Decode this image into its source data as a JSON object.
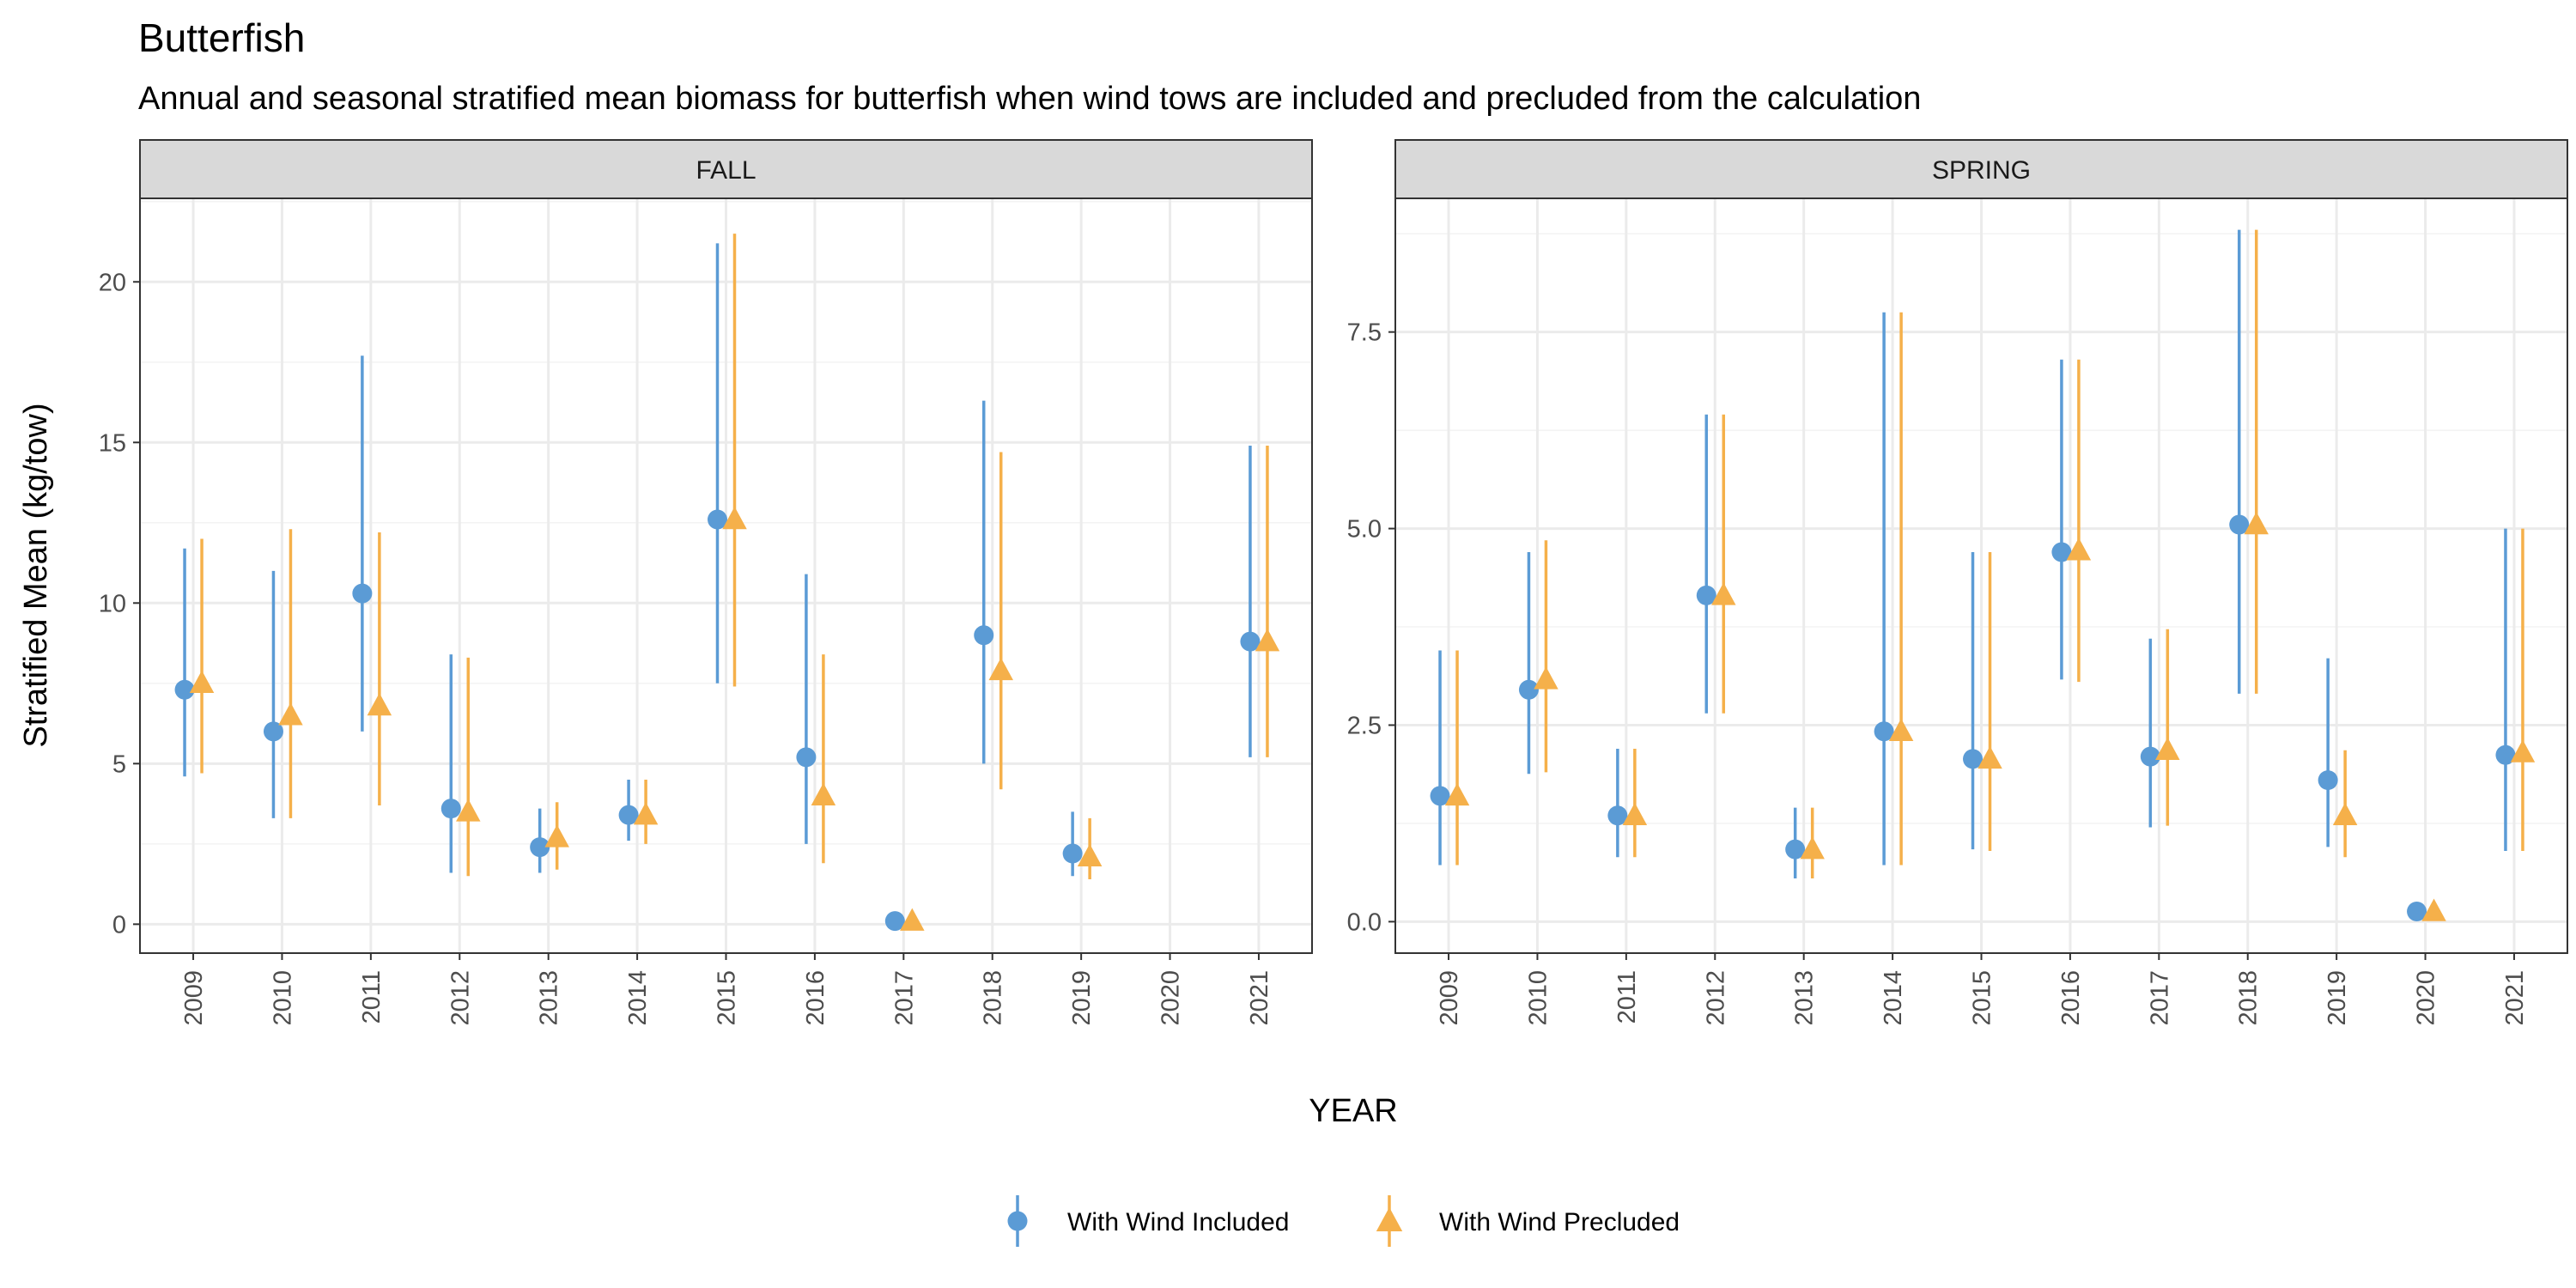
{
  "title": "Butterfish",
  "subtitle": "Annual and seasonal stratified mean biomass for butterfish when wind tows are included and precluded from the calculation",
  "colors": {
    "with_wind_included": "#5b9bd5",
    "with_wind_precluded": "#f5b04a",
    "strip_bg": "#d9d9d9",
    "grid": "#ebebeb"
  },
  "chart_data": {
    "type": "scatter",
    "subtype": "point-range",
    "xlabel": "YEAR",
    "ylabel": "Stratified Mean (kg/tow)",
    "grid": true,
    "legend_position": "bottom",
    "legend": [
      {
        "key": "with_wind_included",
        "label": "With Wind Included",
        "marker": "circle"
      },
      {
        "key": "with_wind_precluded",
        "label": "With Wind Precluded",
        "marker": "triangle"
      }
    ],
    "panels": [
      {
        "name": "FALL",
        "categories": [
          "2009",
          "2010",
          "2011",
          "2012",
          "2013",
          "2014",
          "2015",
          "2016",
          "2017",
          "2018",
          "2019",
          "2020",
          "2021"
        ],
        "ylim": [
          -0.9,
          22.6
        ],
        "yticks": [
          0,
          5,
          10,
          15,
          20
        ],
        "ytick_labels": [
          "0",
          "5",
          "10",
          "15",
          "20"
        ],
        "series": [
          {
            "key": "with_wind_included",
            "name": "With Wind Included",
            "values": [
              7.3,
              6.0,
              10.3,
              3.6,
              2.4,
              3.4,
              12.6,
              5.2,
              0.1,
              9.0,
              2.2,
              null,
              8.8
            ],
            "lower": [
              4.6,
              3.3,
              6.0,
              1.6,
              1.6,
              2.6,
              7.5,
              2.5,
              0.0,
              5.0,
              1.5,
              null,
              5.2
            ],
            "upper": [
              11.7,
              11.0,
              17.7,
              8.4,
              3.6,
              4.5,
              21.2,
              10.9,
              0.2,
              16.3,
              3.5,
              null,
              14.9
            ]
          },
          {
            "key": "with_wind_precluded",
            "name": "With Wind Precluded",
            "values": [
              7.5,
              6.5,
              6.8,
              3.5,
              2.7,
              3.4,
              12.6,
              4.0,
              0.1,
              7.9,
              2.1,
              null,
              8.8
            ],
            "lower": [
              4.7,
              3.3,
              3.7,
              1.5,
              1.7,
              2.5,
              7.4,
              1.9,
              0.0,
              4.2,
              1.4,
              null,
              5.2
            ],
            "upper": [
              12.0,
              12.3,
              12.2,
              8.3,
              3.8,
              4.5,
              21.5,
              8.4,
              0.2,
              14.7,
              3.3,
              null,
              14.9
            ]
          }
        ]
      },
      {
        "name": "SPRING",
        "categories": [
          "2009",
          "2010",
          "2011",
          "2012",
          "2013",
          "2014",
          "2015",
          "2016",
          "2017",
          "2018",
          "2019",
          "2020",
          "2021"
        ],
        "ylim": [
          -0.4,
          9.2
        ],
        "yticks": [
          0,
          2.5,
          5.0,
          7.5
        ],
        "ytick_labels": [
          "0.0",
          "2.5",
          "5.0",
          "7.5"
        ],
        "series": [
          {
            "key": "with_wind_included",
            "name": "With Wind Included",
            "values": [
              1.6,
              2.95,
              1.35,
              4.15,
              0.92,
              2.42,
              2.07,
              4.7,
              2.1,
              5.05,
              1.8,
              0.13,
              2.12
            ],
            "lower": [
              0.72,
              1.88,
              0.82,
              2.65,
              0.55,
              0.72,
              0.92,
              3.08,
              1.2,
              2.9,
              0.95,
              0.05,
              0.9
            ],
            "upper": [
              3.45,
              4.7,
              2.2,
              6.45,
              1.45,
              7.75,
              4.7,
              7.15,
              3.6,
              8.8,
              3.35,
              0.2,
              5.0
            ]
          },
          {
            "key": "with_wind_precluded",
            "name": "With Wind Precluded",
            "values": [
              1.6,
              3.08,
              1.35,
              4.15,
              0.92,
              2.42,
              2.07,
              4.72,
              2.18,
              5.05,
              1.35,
              0.13,
              2.15
            ],
            "lower": [
              0.72,
              1.9,
              0.82,
              2.65,
              0.55,
              0.72,
              0.9,
              3.05,
              1.22,
              2.9,
              0.82,
              0.05,
              0.9
            ],
            "upper": [
              3.45,
              4.85,
              2.2,
              6.45,
              1.45,
              7.75,
              4.7,
              7.15,
              3.72,
              8.8,
              2.18,
              0.2,
              5.0
            ]
          }
        ]
      }
    ]
  }
}
